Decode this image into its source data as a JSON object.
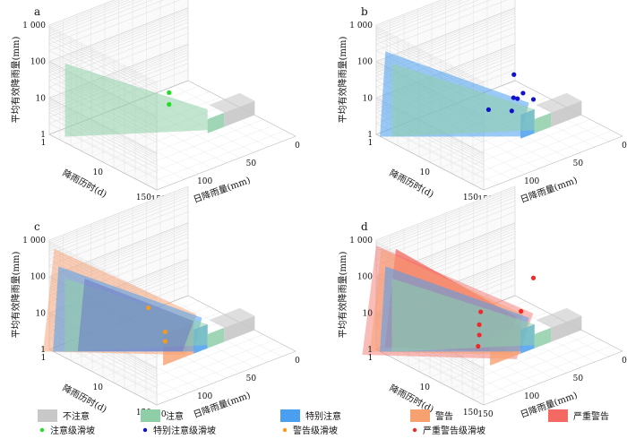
{
  "chart_data": {
    "type": "3d-surface-scatter",
    "axes": {
      "z_label": "平均有效降雨量(mm)",
      "x_label": "降雨历时(d)",
      "y_label": "日降雨量(mm)",
      "z_ticks": [
        "1",
        "10",
        "100",
        "1 000"
      ],
      "x_ticks": [
        "1",
        "10",
        "150"
      ],
      "y_ticks": [
        "150",
        "100",
        "50",
        "0"
      ],
      "z_scale": "log",
      "grid": true
    },
    "panels": [
      {
        "label": "a",
        "volumes": [
          "不注意",
          "注意"
        ],
        "points_series": "注意级滑坡",
        "points": [
          {
            "duration_d": 4,
            "daily_mm": 105,
            "effective_mm": 42
          },
          {
            "duration_d": 4,
            "daily_mm": 105,
            "effective_mm": 20
          }
        ]
      },
      {
        "label": "b",
        "volumes": [
          "不注意",
          "注意",
          "特别注意"
        ],
        "points_series": "特别注意级滑坡",
        "points": [
          {
            "duration_d": 3,
            "daily_mm": 120,
            "effective_mm": 22
          },
          {
            "duration_d": 5,
            "daily_mm": 78,
            "effective_mm": 70
          },
          {
            "duration_d": 6,
            "daily_mm": 75,
            "effective_mm": 14
          },
          {
            "duration_d": 6,
            "daily_mm": 70,
            "effective_mm": 12
          },
          {
            "duration_d": 4,
            "daily_mm": 85,
            "effective_mm": 9
          },
          {
            "duration_d": 7,
            "daily_mm": 60,
            "effective_mm": 13
          },
          {
            "duration_d": 10,
            "daily_mm": 40,
            "effective_mm": 5
          }
        ]
      },
      {
        "label": "c",
        "volumes": [
          "不注意",
          "注意",
          "特别注意",
          "警告"
        ],
        "points_series": "警告级滑坡",
        "points": [
          {
            "duration_d": 1.5,
            "daily_mm": 150,
            "effective_mm": 160
          },
          {
            "duration_d": 4,
            "daily_mm": 110,
            "effective_mm": 10
          },
          {
            "duration_d": 4,
            "daily_mm": 110,
            "effective_mm": 5.5
          }
        ]
      },
      {
        "label": "d",
        "volumes": [
          "不注意",
          "注意",
          "特别注意",
          "警告",
          "严重警告"
        ],
        "points_series": "严重警告级滑坡",
        "points": [
          {
            "duration_d": 1.5,
            "daily_mm": 145,
            "effective_mm": 50
          },
          {
            "duration_d": 1.5,
            "daily_mm": 145,
            "effective_mm": 26
          },
          {
            "duration_d": 3,
            "daily_mm": 130,
            "effective_mm": 60
          },
          {
            "duration_d": 6,
            "daily_mm": 120,
            "effective_mm": 4
          },
          {
            "duration_d": 8,
            "daily_mm": 60,
            "effective_mm": 10
          },
          {
            "duration_d": 10,
            "daily_mm": 40,
            "effective_mm": 50
          }
        ]
      }
    ],
    "legend": {
      "placement": "bottom",
      "levels": [
        {
          "name": "不注意",
          "color": "#c8c8c8"
        },
        {
          "name": "注意",
          "color": "#8fcfa8"
        },
        {
          "name": "特别注意",
          "color": "#4a9ff0"
        },
        {
          "name": "警告",
          "color": "#f7a070"
        },
        {
          "name": "严重警告",
          "color": "#f46a62"
        }
      ],
      "point_series": [
        {
          "name": "注意级滑坡",
          "color": "#22dd22"
        },
        {
          "name": "特别注意级滑坡",
          "color": "#1111cc"
        },
        {
          "name": "警告级滑坡",
          "color": "#f59a20"
        },
        {
          "name": "严重警告级滑坡",
          "color": "#ee2a2a"
        }
      ]
    }
  }
}
